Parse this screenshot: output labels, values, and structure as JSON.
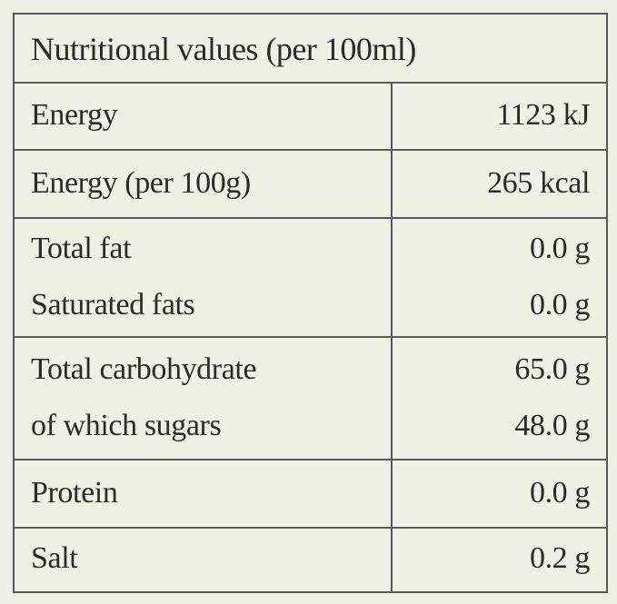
{
  "table": {
    "title": "Nutritional values (per 100ml)",
    "rows": [
      [
        [
          "Energy",
          "1123 kJ"
        ]
      ],
      [
        [
          "Energy (per 100g)",
          "265 kcal"
        ]
      ],
      [
        [
          "Total fat",
          "0.0 g"
        ],
        [
          "Saturated fats",
          "0.0 g"
        ]
      ],
      [
        [
          "Total carbohydrate",
          "65.0 g"
        ],
        [
          "of which sugars",
          "48.0 g"
        ]
      ],
      [
        [
          "Protein",
          "0.0 g"
        ]
      ],
      [
        [
          "Salt",
          "0.2 g"
        ]
      ]
    ]
  }
}
